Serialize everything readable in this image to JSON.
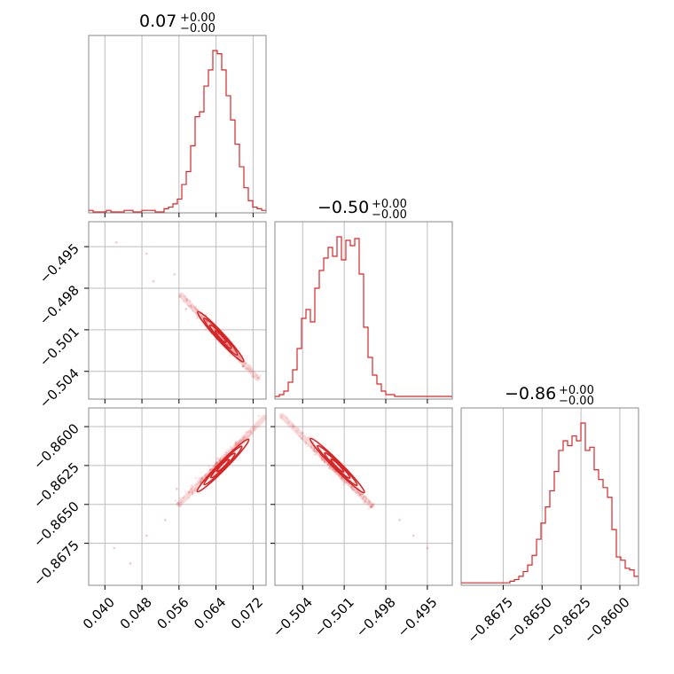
{
  "chart_data": [
    {
      "type": "histogram",
      "panel": "diag-0",
      "title": {
        "value": "0.07",
        "sup": "+0.00",
        "sub": "−0.00"
      },
      "x_range": [
        0.0365,
        0.0748
      ],
      "x_ticks": [
        {
          "value": 0.04,
          "label": "0.040"
        },
        {
          "value": 0.048,
          "label": "0.048"
        },
        {
          "value": 0.056,
          "label": "0.056"
        },
        {
          "value": 0.064,
          "label": "0.064"
        },
        {
          "value": 0.072,
          "label": "0.072"
        }
      ],
      "bin_edges_range": [
        0.0365,
        0.0748
      ],
      "counts": [
        1,
        0,
        0,
        0,
        1,
        0,
        0,
        0,
        1,
        1,
        0,
        0,
        1,
        1,
        1,
        0,
        0,
        2,
        3,
        5,
        8,
        17,
        25,
        41,
        59,
        62,
        78,
        88,
        100,
        98,
        88,
        72,
        57,
        42,
        28,
        15,
        7,
        3,
        2,
        1
      ]
    },
    {
      "type": "histogram",
      "panel": "diag-1",
      "title": {
        "value": "−0.50",
        "sup": "+0.00",
        "sub": "−0.00"
      },
      "x_range": [
        -0.506,
        -0.4932
      ],
      "x_ticks": [
        {
          "value": -0.504,
          "label": "−0.504"
        },
        {
          "value": -0.501,
          "label": "−0.501"
        },
        {
          "value": -0.498,
          "label": "−0.498"
        },
        {
          "value": -0.495,
          "label": "−0.495"
        }
      ],
      "bin_edges_range": [
        -0.506,
        -0.4932
      ],
      "counts": [
        1,
        2,
        4,
        9,
        16,
        28,
        45,
        50,
        43,
        62,
        72,
        79,
        85,
        80,
        91,
        78,
        89,
        86,
        90,
        70,
        40,
        23,
        13,
        8,
        4,
        2,
        2,
        1,
        1,
        1,
        1,
        1,
        1,
        1,
        1,
        1,
        1,
        1,
        1,
        1
      ]
    },
    {
      "type": "histogram",
      "panel": "diag-2",
      "title": {
        "value": "−0.86",
        "sup": "+0.00",
        "sub": "−0.00"
      },
      "x_range": [
        -0.8702,
        -0.8588
      ],
      "x_ticks": [
        {
          "value": -0.8675,
          "label": "−0.8675"
        },
        {
          "value": -0.865,
          "label": "−0.8650"
        },
        {
          "value": -0.8625,
          "label": "−0.8625"
        },
        {
          "value": -0.86,
          "label": "−0.8600"
        }
      ],
      "bin_edges_range": [
        -0.8702,
        -0.8588
      ],
      "counts": [
        1,
        1,
        1,
        1,
        1,
        1,
        1,
        1,
        1,
        1,
        1,
        2,
        3,
        5,
        8,
        12,
        18,
        28,
        38,
        48,
        58,
        70,
        83,
        89,
        86,
        92,
        89,
        100,
        83,
        85,
        71,
        65,
        60,
        54,
        34,
        17,
        15,
        10,
        9,
        5
      ]
    },
    {
      "type": "scatter",
      "panel": "off-1-0",
      "x_range": [
        0.0365,
        0.0748
      ],
      "y_range": [
        -0.506,
        -0.4932
      ],
      "y_ticks": [
        {
          "value": -0.495,
          "label": "−0.495"
        },
        {
          "value": -0.498,
          "label": "−0.498"
        },
        {
          "value": -0.501,
          "label": "−0.501"
        },
        {
          "value": -0.504,
          "label": "−0.504"
        }
      ],
      "trend": [
        [
          0.0565,
          -0.4985
        ],
        [
          0.073,
          -0.5045
        ]
      ],
      "outliers": [
        [
          0.0425,
          -0.4947
        ],
        [
          0.049,
          -0.4955
        ],
        [
          0.0505,
          -0.4975
        ],
        [
          0.055,
          -0.497
        ],
        [
          0.0575,
          -0.4995
        ]
      ],
      "density_center": [
        0.065,
        -0.5015
      ]
    },
    {
      "type": "scatter",
      "panel": "off-2-0",
      "x_range": [
        0.0365,
        0.0748
      ],
      "y_range": [
        -0.8702,
        -0.8588
      ],
      "y_ticks": [
        {
          "value": -0.86,
          "label": "−0.8600"
        },
        {
          "value": -0.8625,
          "label": "−0.8625"
        },
        {
          "value": -0.865,
          "label": "−0.8650"
        },
        {
          "value": -0.8675,
          "label": "−0.8675"
        }
      ],
      "trend": [
        [
          0.056,
          -0.865
        ],
        [
          0.0745,
          -0.8594
        ]
      ],
      "outliers": [
        [
          0.042,
          -0.8678
        ],
        [
          0.0455,
          -0.8688
        ],
        [
          0.049,
          -0.867
        ],
        [
          0.053,
          -0.866
        ],
        [
          0.0555,
          -0.864
        ]
      ],
      "density_center": [
        0.0655,
        -0.8625
      ]
    },
    {
      "type": "scatter",
      "panel": "off-2-1",
      "x_range": [
        -0.506,
        -0.4932
      ],
      "y_range": [
        -0.8702,
        -0.8588
      ],
      "trend": [
        [
          -0.5055,
          -0.8593
        ],
        [
          -0.499,
          -0.8651
        ]
      ],
      "outliers": [
        [
          -0.497,
          -0.866
        ],
        [
          -0.496,
          -0.867
        ],
        [
          -0.495,
          -0.8678
        ]
      ],
      "density_center": [
        -0.5015,
        -0.8625
      ]
    }
  ],
  "colors": {
    "series": "#d62728",
    "grid": "#bdbdbd",
    "frame": "#888888"
  }
}
